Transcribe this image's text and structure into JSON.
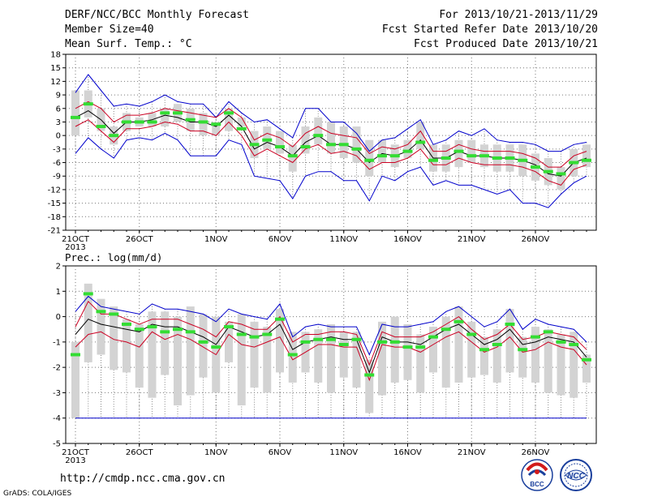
{
  "header": {
    "title": "DERF/NCC/BCC Monthly Forecast",
    "member_size": "Member Size=40",
    "variable": "Mean Surf. Temp.: °C",
    "period": "For 2013/10/21-2013/11/29",
    "started": "Fcst Started Refer Date 2013/10/20",
    "produced": "Fcst Produced Date 2013/10/21"
  },
  "footer": {
    "url": "http://cmdp.ncc.cma.gov.cn",
    "credit": "GrADS: COLA/IGES",
    "logo_left_text": "BCC",
    "logo_right_text": "NCC"
  },
  "colors": {
    "envelope": "#0000cc",
    "spread": "#cc0022",
    "mean": "#000000",
    "box": "#d3d3d3",
    "marker": "#33dd33"
  },
  "chart_data": [
    {
      "type": "box-line",
      "title": "Mean Surf. Temp.: °C",
      "ylim": [
        -21,
        18
      ],
      "yticks": [
        18,
        15,
        12,
        9,
        6,
        3,
        0,
        -3,
        -6,
        -9,
        -12,
        -15,
        -18,
        -21
      ],
      "x_tick_labels": [
        {
          "day": 1,
          "label": "21OCT",
          "sub": "2013"
        },
        {
          "day": 6,
          "label": "26OCT"
        },
        {
          "day": 12,
          "label": "1NOV"
        },
        {
          "day": 17,
          "label": "6NOV"
        },
        {
          "day": 22,
          "label": "11NOV"
        },
        {
          "day": 27,
          "label": "16NOV"
        },
        {
          "day": 32,
          "label": "21NOV"
        },
        {
          "day": 37,
          "label": "26NOV"
        }
      ],
      "grid": true,
      "box_low": [
        0,
        4,
        1,
        -2,
        1,
        2,
        2,
        2,
        3,
        1,
        0,
        0,
        1,
        2,
        -5,
        -3,
        -4,
        -8,
        -4,
        -2,
        -4,
        -5,
        -6,
        -9,
        -6,
        -7,
        -5,
        -3,
        -8,
        -8,
        -7,
        -6,
        -7,
        -8,
        -8,
        -9,
        -10,
        -11,
        -12,
        -9,
        -7
      ],
      "box_high": [
        10,
        10,
        6,
        2,
        5,
        4,
        5,
        6,
        7,
        6,
        5,
        3,
        6,
        4,
        1,
        2,
        1,
        -2,
        2,
        4,
        3,
        2,
        2,
        -1,
        -1,
        -2,
        -1,
        3,
        -2,
        -2,
        -1,
        -1,
        -2,
        -2,
        -2,
        -2,
        -4,
        -5,
        -7,
        -3,
        -2
      ],
      "mean": [
        4,
        5.5,
        3.5,
        0.5,
        3,
        3,
        3.5,
        4.5,
        4,
        3,
        3,
        2,
        4.5,
        2,
        -3,
        -1.5,
        -2.5,
        -4.5,
        -1.5,
        0,
        -2,
        -2,
        -3,
        -6,
        -4,
        -4.5,
        -3.5,
        -1,
        -5,
        -5,
        -3.5,
        -4.5,
        -4.5,
        -5,
        -5,
        -5.5,
        -6.5,
        -8.5,
        -9,
        -6,
        -5
      ],
      "spread_upper": [
        6,
        7.5,
        6,
        3,
        4.5,
        4.5,
        5,
        6,
        5.5,
        5,
        4.5,
        4,
        6,
        4,
        -1,
        0.5,
        -0.5,
        -2.5,
        0.5,
        2,
        0.5,
        0,
        -0.5,
        -4,
        -2.5,
        -3,
        -2,
        1,
        -3.5,
        -3.5,
        -2,
        -3,
        -3.5,
        -3.5,
        -3.5,
        -4,
        -5,
        -7,
        -7,
        -4.5,
        -3.5
      ],
      "spread_lower": [
        2,
        3.5,
        1,
        -1.5,
        1.5,
        1.5,
        2,
        3,
        2.5,
        1,
        1,
        0,
        3,
        0,
        -4.5,
        -3,
        -4.5,
        -6,
        -3,
        -2,
        -4,
        -3.5,
        -4.5,
        -7.5,
        -6,
        -6,
        -5,
        -3,
        -6.5,
        -6.5,
        -5,
        -6,
        -6.5,
        -6.5,
        -6.5,
        -7,
        -8,
        -10,
        -11,
        -7.5,
        -6.5
      ],
      "env_upper": [
        9.5,
        13.5,
        10,
        6.5,
        7,
        6.5,
        7.5,
        9,
        7.5,
        7,
        7,
        4,
        7.5,
        5,
        3,
        3.5,
        1.5,
        -0.5,
        6,
        6,
        3,
        3,
        0.5,
        -3.5,
        -1,
        -0.5,
        1.5,
        3.5,
        -2,
        -1,
        1,
        0,
        1.5,
        -1,
        -1.5,
        -1.5,
        -2,
        -3.5,
        -3.5,
        -2,
        -1.5
      ],
      "env_lower": [
        -4,
        -0.5,
        -3,
        -5,
        -1,
        -0.5,
        -1,
        0.5,
        -1,
        -4.5,
        -4.5,
        -4.5,
        -1,
        -2,
        -9,
        -9.5,
        -10,
        -14,
        -9,
        -8,
        -8,
        -10,
        -10,
        -14.5,
        -9,
        -10,
        -8,
        -7,
        -11,
        -10,
        -11,
        -11,
        -12,
        -13,
        -12,
        -15,
        -15,
        -16,
        -13,
        -10.5,
        -9
      ],
      "markers": [
        4,
        7,
        2,
        0,
        3,
        3,
        3,
        5,
        5,
        3.5,
        3,
        2.5,
        5,
        1.5,
        -2,
        -1,
        -2.5,
        -4.5,
        -2.5,
        0,
        -2,
        -2,
        -3,
        -5.5,
        -4.5,
        -4.5,
        -3.5,
        -1.5,
        -5.5,
        -5,
        -3.5,
        -4.5,
        -4.5,
        -5,
        -5,
        -5.5,
        -7,
        -8,
        -8.5,
        -6,
        -5.5
      ]
    },
    {
      "type": "box-line",
      "title": "Prec.: log(mm/d)",
      "ylim": [
        -5,
        2
      ],
      "yticks": [
        2,
        1,
        0,
        -1,
        -2,
        -3,
        -4,
        -5
      ],
      "x_tick_labels": [
        {
          "day": 1,
          "label": "21OCT",
          "sub": "2013"
        },
        {
          "day": 6,
          "label": "26OCT"
        },
        {
          "day": 12,
          "label": "1NOV"
        },
        {
          "day": 17,
          "label": "6NOV"
        },
        {
          "day": 22,
          "label": "11NOV"
        },
        {
          "day": 27,
          "label": "16NOV"
        },
        {
          "day": 32,
          "label": "21NOV"
        },
        {
          "day": 37,
          "label": "26NOV"
        }
      ],
      "grid": true,
      "box_low": [
        -4,
        -1.8,
        -1.5,
        -2.1,
        -2.2,
        -2.8,
        -3.2,
        -2.3,
        -3.5,
        -3.1,
        -2.4,
        -3,
        -1.8,
        -3.5,
        -2.8,
        -3,
        -2.2,
        -2.6,
        -2.2,
        -2.6,
        -3,
        -2.4,
        -2.8,
        -3.8,
        -3.1,
        -2.6,
        -2.5,
        -3,
        -2.2,
        -2.8,
        -2.6,
        -2.4,
        -2.3,
        -2.6,
        -2.2,
        -2.4,
        -2.6,
        -3,
        -3.1,
        -3.2,
        -2.6
      ],
      "box_high": [
        -1,
        1.3,
        0.7,
        0.4,
        -0.1,
        -0.3,
        0.2,
        0.2,
        0,
        0.4,
        0.1,
        0,
        -0.2,
        0.1,
        -0.2,
        -0.4,
        0.3,
        -0.6,
        -0.6,
        -0.5,
        -0.3,
        -0.6,
        -0.6,
        -1.7,
        -0.2,
        0,
        -0.3,
        -0.7,
        -0.4,
        0,
        0.4,
        -0.2,
        -0.8,
        -0.5,
        0.3,
        -0.8,
        -0.4,
        -0.5,
        -0.7,
        -0.6,
        -1.5
      ],
      "mean": [
        -0.7,
        -0.1,
        -0.3,
        -0.4,
        -0.5,
        -0.6,
        -0.3,
        -0.4,
        -0.4,
        -0.6,
        -0.8,
        -1.1,
        -0.4,
        -0.6,
        -0.8,
        -0.7,
        -0.3,
        -1.3,
        -1.0,
        -0.9,
        -0.8,
        -0.9,
        -0.9,
        -2.2,
        -0.8,
        -1.0,
        -1.0,
        -1.1,
        -0.8,
        -0.5,
        -0.3,
        -0.7,
        -1.1,
        -0.9,
        -0.5,
        -1.1,
        -1.0,
        -0.8,
        -0.9,
        -1.0,
        -1.6
      ],
      "spread_upper": [
        -0.4,
        0.6,
        0.1,
        0.1,
        -0.1,
        -0.3,
        -0.1,
        -0.1,
        -0.1,
        -0.3,
        -0.5,
        -0.8,
        -0.2,
        -0.3,
        -0.5,
        -0.5,
        0.0,
        -1.0,
        -0.7,
        -0.7,
        -0.6,
        -0.6,
        -0.7,
        -1.9,
        -0.6,
        -0.8,
        -0.8,
        -0.8,
        -0.6,
        -0.3,
        0.0,
        -0.5,
        -0.9,
        -0.7,
        -0.3,
        -0.9,
        -0.8,
        -0.6,
        -0.7,
        -0.8,
        -1.3
      ],
      "spread_lower": [
        -1.2,
        -0.7,
        -0.6,
        -0.9,
        -1.0,
        -1.2,
        -0.6,
        -0.9,
        -0.7,
        -0.9,
        -1.2,
        -1.5,
        -0.7,
        -1.1,
        -1.2,
        -1.0,
        -0.8,
        -1.7,
        -1.4,
        -1.1,
        -1.1,
        -1.2,
        -1.2,
        -2.5,
        -1.1,
        -1.2,
        -1.2,
        -1.4,
        -1.1,
        -0.8,
        -0.6,
        -1.0,
        -1.4,
        -1.2,
        -0.8,
        -1.4,
        -1.3,
        -1.0,
        -1.2,
        -1.3,
        -1.9
      ],
      "env_upper": [
        0.2,
        0.8,
        0.4,
        0.3,
        0.2,
        0.1,
        0.5,
        0.3,
        0.3,
        0.2,
        0.1,
        -0.2,
        0.3,
        0.1,
        0.0,
        -0.1,
        0.5,
        -0.8,
        -0.4,
        -0.3,
        -0.4,
        -0.4,
        -0.4,
        -1.5,
        -0.3,
        -0.4,
        -0.4,
        -0.3,
        -0.2,
        0.2,
        0.4,
        0.0,
        -0.4,
        -0.2,
        0.3,
        -0.5,
        -0.1,
        -0.3,
        -0.4,
        -0.5,
        -1.0
      ],
      "env_lower": [
        -4,
        -4,
        -2.6,
        -2.8,
        -3.0,
        -3.8,
        -2.6,
        -3.2,
        -2.8,
        -3.4,
        -3.0,
        -3.0,
        -2.8,
        -3.0,
        -3.2,
        -2.6,
        -2.8,
        -3.8,
        -3.2,
        -2.8,
        -3.0,
        -3.2,
        -3.0,
        -4.0,
        -2.8,
        -2.9,
        -3.0,
        -3.1,
        -2.6,
        -2.2,
        -1.8,
        -2.6,
        -3.0,
        -2.8,
        -2.2,
        -2.8,
        -2.7,
        -2.4,
        -2.5,
        -2.7,
        -3.1
      ],
      "env_floor": -4,
      "markers": [
        -1.5,
        0.9,
        0.2,
        0.1,
        -0.3,
        -0.5,
        -0.4,
        -0.6,
        -0.5,
        -0.6,
        -1.0,
        -1.2,
        -0.4,
        -0.7,
        -0.8,
        -0.7,
        -0.1,
        -1.5,
        -1.0,
        -0.9,
        -0.9,
        -1.1,
        -0.9,
        -2.3,
        -1.0,
        -1.0,
        -1.2,
        -1.2,
        -0.8,
        -0.5,
        -0.2,
        -0.7,
        -1.3,
        -1.1,
        -0.3,
        -1.3,
        -0.8,
        -0.6,
        -1.0,
        -1.1,
        -1.7
      ]
    }
  ]
}
